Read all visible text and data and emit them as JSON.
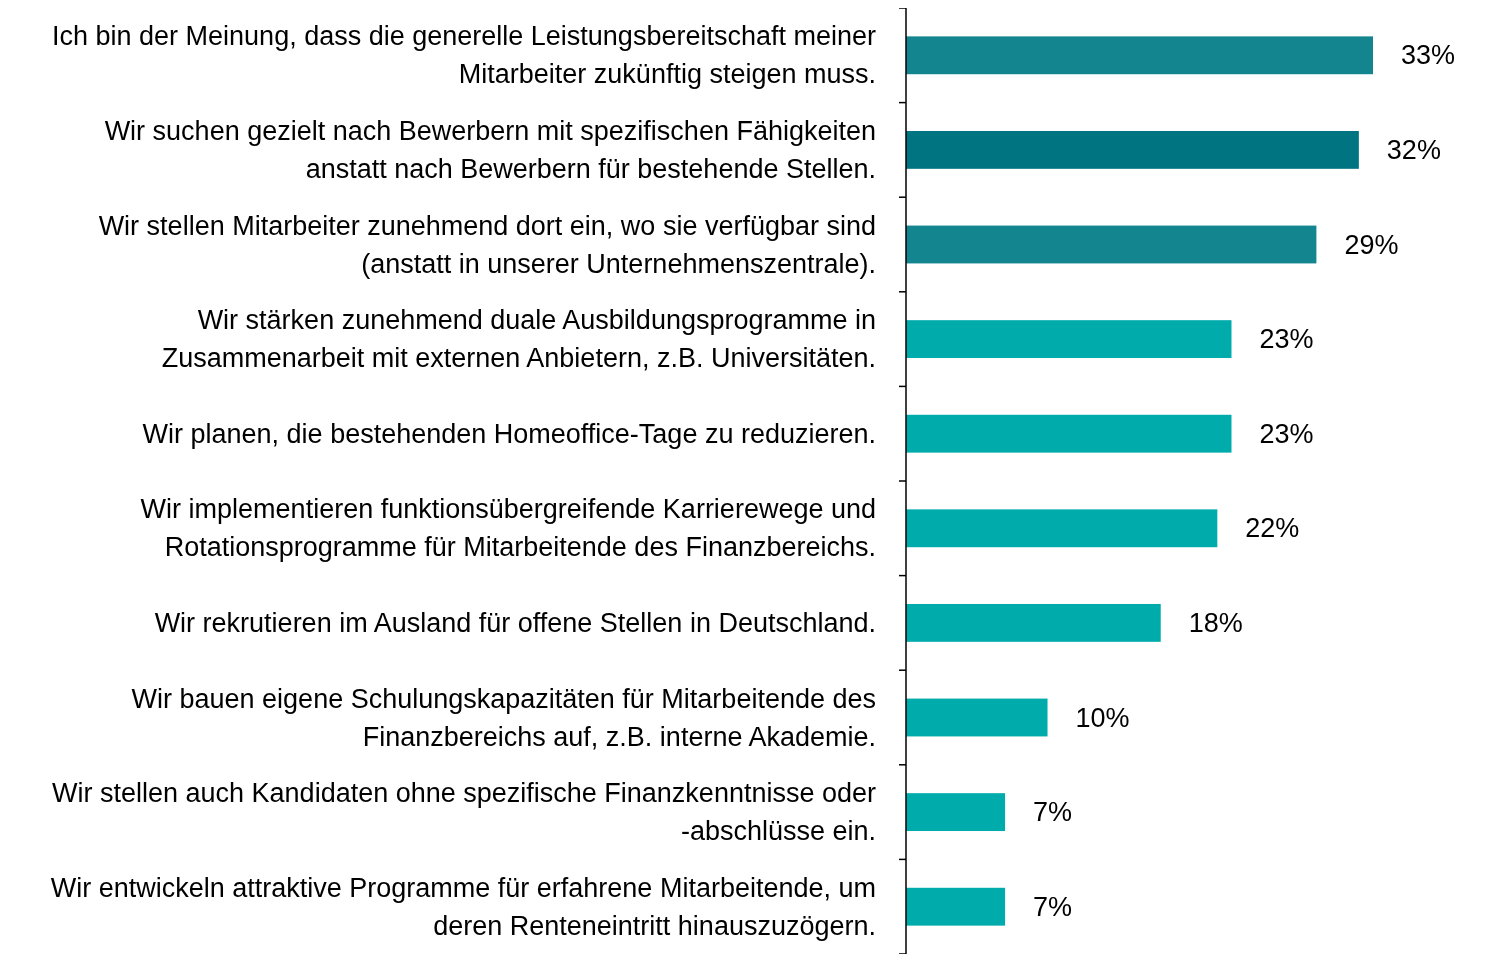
{
  "chart_data": {
    "type": "bar",
    "orientation": "horizontal",
    "data_labels": true,
    "tick_labels": "y",
    "categories": [
      "Ich bin der Meinung, dass die generelle Leistungsbereitschaft meiner Mitarbeiter zukünftig steigen muss.",
      "Wir suchen gezielt nach Bewerbern mit spezifischen Fähigkeiten anstatt nach Bewerbern für bestehende Stellen.",
      "Wir stellen Mitarbeiter zunehmend dort ein, wo sie verfügbar sind (anstatt in unserer Unternehmenszentrale).",
      "Wir stärken zunehmend duale Ausbildungsprogramme in Zusammenarbeit mit externen Anbietern, z.B. Universitäten.",
      "Wir planen, die bestehenden Homeoffice-Tage zu reduzieren.",
      "Wir implementieren funktionsübergreifende Karrierewege und Rotationsprogramme für Mitarbeitende des Finanzbereichs.",
      "Wir rekrutieren im Ausland für offene Stellen in Deutschland.",
      "Wir bauen eigene Schulungskapazitäten für Mitarbeitende des Finanzbereichs auf, z.B. interne Akademie.",
      "Wir stellen auch Kandidaten ohne spezifische Finanzkenntnisse oder -abschlüsse ein.",
      "Wir entwickeln attraktive Programme für erfahrene Mitarbeitende, um deren Renteneintritt hinauszuzögern."
    ],
    "values": [
      33,
      32,
      29,
      23,
      23,
      22,
      18,
      10,
      7,
      7
    ],
    "value_labels": [
      "33%",
      "32%",
      "29%",
      "23%",
      "23%",
      "22%",
      "18%",
      "10%",
      "7%",
      "7%"
    ],
    "colors": [
      "#12858f",
      "#007480",
      "#12858f",
      "#00abab",
      "#00abab",
      "#00abab",
      "#00abab",
      "#00abab",
      "#00abab",
      "#00abab"
    ]
  }
}
